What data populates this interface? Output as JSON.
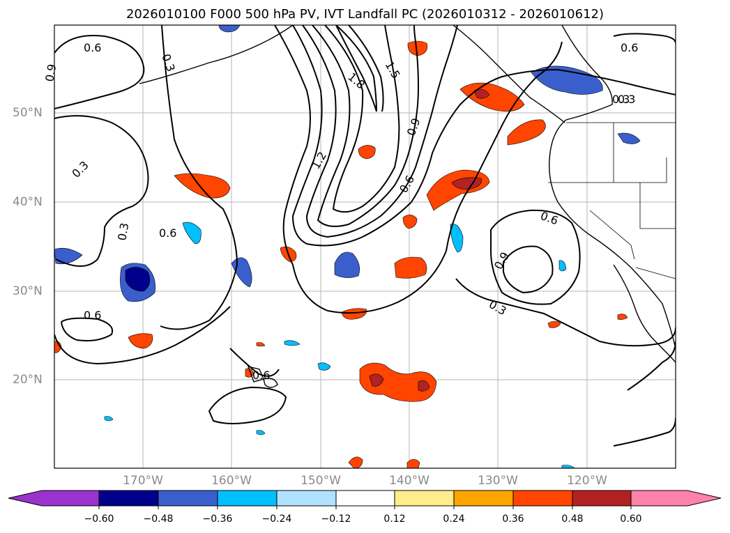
{
  "title": "2026010100 F000 500 hPa PV, IVT Landfall PC (2026010312 - 2026010612)",
  "map": {
    "lon_labels": [
      "170°W",
      "160°W",
      "150°W",
      "140°W",
      "130°W",
      "120°W"
    ],
    "lat_labels": [
      "50°N",
      "40°N",
      "30°N",
      "20°N"
    ],
    "contour_labels": [
      "0.6",
      "0.3",
      "0.9",
      "1.8",
      "1.5",
      "0.3",
      "0.9",
      "1.2",
      "0.6",
      "0.3",
      "0.6",
      "0.3",
      "0.6",
      "0.6",
      "0.9",
      "0.3",
      "0.6",
      "0.6",
      "0.3"
    ]
  },
  "colorbar": {
    "tick_labels": [
      "−0.60",
      "−0.48",
      "−0.36",
      "−0.24",
      "−0.12",
      "0.12",
      "0.24",
      "0.36",
      "0.48",
      "0.60"
    ],
    "colors": [
      "#9a32cd",
      "#00008b",
      "#3a5fcd",
      "#00bfff",
      "#b0e2ff",
      "#ffffff",
      "#ffec8b",
      "#ffa500",
      "#ff4500",
      "#b22222",
      "#ff82ab"
    ]
  }
}
